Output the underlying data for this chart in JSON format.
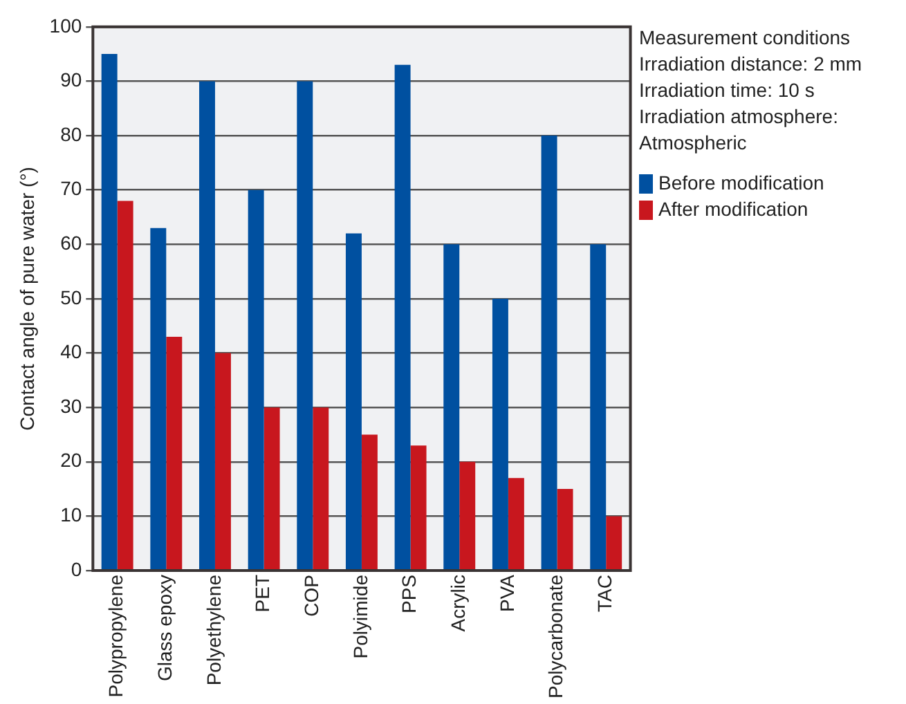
{
  "chart_data": {
    "type": "bar",
    "categories": [
      "Polypropylene",
      "Glass epoxy",
      "Polyethylene",
      "PET",
      "COP",
      "Polyimide",
      "PPS",
      "Acrylic",
      "PVA",
      "Polycarbonate",
      "TAC"
    ],
    "series": [
      {
        "name": "Before modification",
        "color": "#0050a0",
        "values": [
          95,
          63,
          90,
          70,
          90,
          62,
          93,
          60,
          50,
          80,
          60
        ]
      },
      {
        "name": "After modification",
        "color": "#c8171e",
        "values": [
          68,
          43,
          40,
          30,
          30,
          25,
          23,
          20,
          17,
          15,
          10
        ]
      }
    ],
    "ylabel": "Contact angle of pure water (°)",
    "ylim": [
      0,
      100
    ],
    "yticks": [
      0,
      10,
      20,
      30,
      40,
      50,
      60,
      70,
      80,
      90,
      100
    ],
    "grid": "y",
    "legend": "right",
    "annotations": [
      "Measurement conditions",
      "Irradiation distance: 2 mm",
      "Irradiation time: 10 s",
      "Irradiation atmosphere:",
      "Atmospheric"
    ]
  }
}
